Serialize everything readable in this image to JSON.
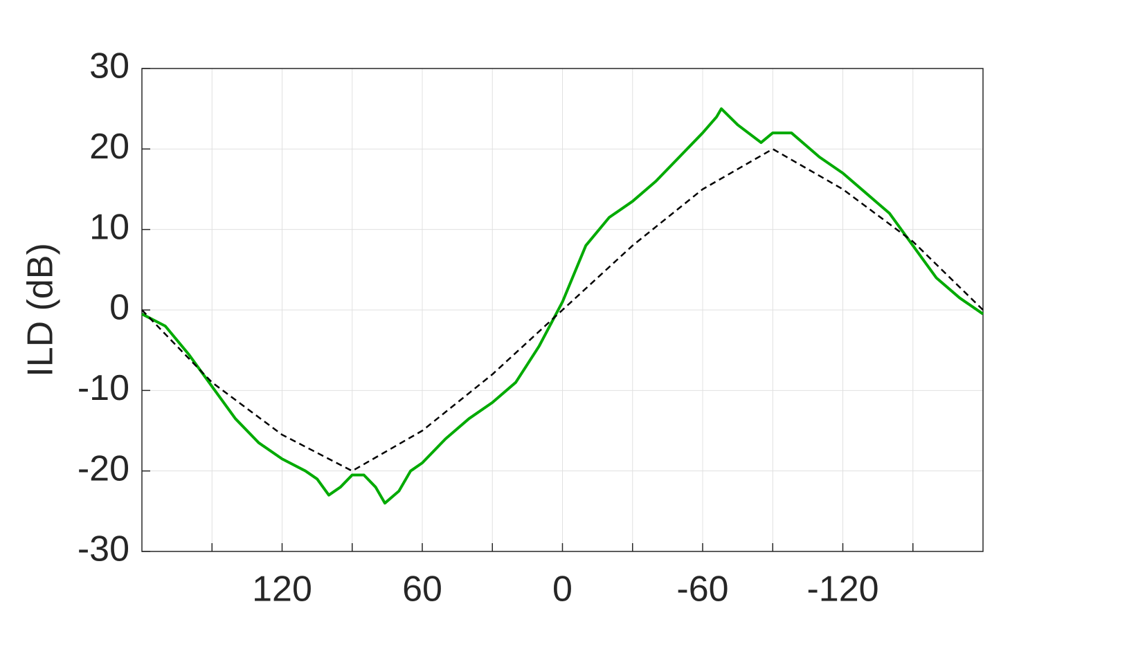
{
  "chart_data": {
    "type": "line",
    "y_label": "ILD (dB)",
    "xlim": [
      180,
      -180
    ],
    "ylim": [
      -30,
      30
    ],
    "xticks": [
      120,
      60,
      0,
      -60,
      -120
    ],
    "xminor_ticks": [
      150,
      90,
      30,
      -30,
      -90,
      -150
    ],
    "yticks": [
      -30,
      -20,
      -10,
      0,
      10,
      20,
      30
    ],
    "grid": true,
    "series": [
      {
        "color": "#00aa00",
        "style": "solid",
        "x": [
          180,
          170,
          160,
          150,
          140,
          130,
          120,
          110,
          105,
          100,
          95,
          90,
          85,
          80,
          76,
          70,
          65,
          60,
          50,
          40,
          30,
          20,
          10,
          0,
          -10,
          -20,
          -30,
          -40,
          -50,
          -60,
          -66,
          -68,
          -75,
          -85,
          -90,
          -98,
          -110,
          -120,
          -130,
          -140,
          -150,
          -160,
          -170,
          -180
        ],
        "values": [
          -0.5,
          -2,
          -5.5,
          -9.5,
          -13.5,
          -16.5,
          -18.5,
          -20,
          -21,
          -23,
          -22,
          -20.5,
          -20.5,
          -22,
          -24,
          -22.5,
          -20,
          -19,
          -16,
          -13.5,
          -11.5,
          -9,
          -4.5,
          1,
          8,
          11.5,
          13.5,
          16,
          19,
          22,
          24,
          25,
          23,
          20.8,
          22,
          22,
          19,
          17,
          14.5,
          12,
          8,
          4,
          1.5,
          -0.5
        ]
      },
      {
        "color": "#000000",
        "style": "dashed",
        "x": [
          180,
          150,
          120,
          90,
          60,
          30,
          0,
          -30,
          -60,
          -90,
          -120,
          -150,
          -180
        ],
        "values": [
          0,
          -9,
          -15.5,
          -20,
          -15,
          -8,
          0,
          8,
          15,
          20,
          15,
          8.5,
          0
        ]
      }
    ]
  }
}
